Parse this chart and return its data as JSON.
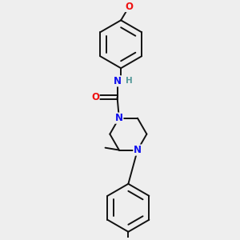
{
  "background_color": "#eeeeee",
  "bond_color": "#111111",
  "bond_width": 1.4,
  "atom_colors": {
    "N": "#1010EE",
    "O": "#EE1010",
    "H": "#559999",
    "C": "#111111"
  },
  "font_size": 8.5,
  "fig_size": [
    3.0,
    3.0
  ],
  "dpi": 100
}
